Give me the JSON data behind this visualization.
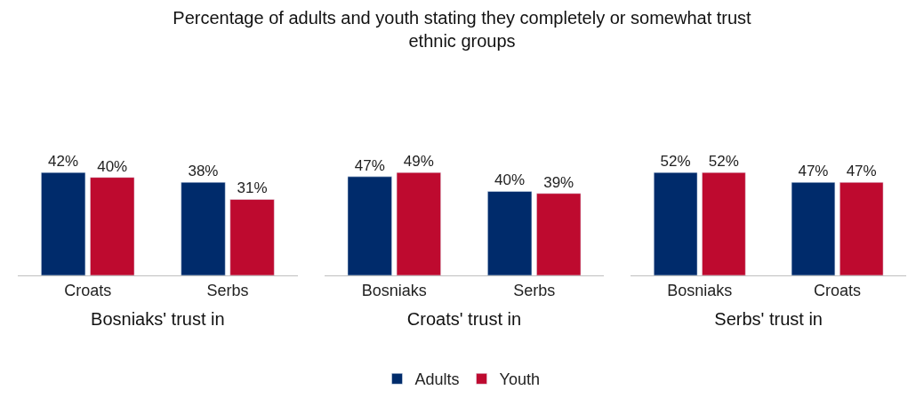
{
  "chart_data": [
    {
      "type": "bar",
      "title": "Percentage of adults and youth stating they completely or somewhat trust ethnic groups",
      "xlabel": "Bosniaks' trust in",
      "categories": [
        "Croats",
        "Serbs"
      ],
      "tick_labels": "x",
      "legend": "bottom",
      "series": [
        {
          "name": "Adults",
          "color": "#002b6b",
          "values": [
            42,
            38
          ],
          "value_labels": [
            "42%",
            "38%"
          ]
        },
        {
          "name": "Youth",
          "color": "#be0a2f",
          "values": [
            40,
            31
          ],
          "value_labels": [
            "40%",
            "31%"
          ]
        }
      ]
    },
    {
      "type": "bar",
      "xlabel": "Croats' trust in",
      "categories": [
        "Bosniaks",
        "Serbs"
      ],
      "tick_labels": "x",
      "series": [
        {
          "color": "#002b6b",
          "values": [
            47,
            40
          ],
          "value_labels": [
            "47%",
            "40%"
          ]
        },
        {
          "color": "#be0a2f",
          "values": [
            49,
            39
          ],
          "value_labels": [
            "49%",
            "39%"
          ]
        }
      ]
    },
    {
      "type": "bar",
      "xlabel": "Serbs' trust in",
      "categories": [
        "Bosniaks",
        "Croats"
      ],
      "tick_labels": "x",
      "series": [
        {
          "color": "#002b6b",
          "values": [
            52,
            47
          ],
          "value_labels": [
            "52%",
            "47%"
          ]
        },
        {
          "color": "#be0a2f",
          "values": [
            52,
            47
          ],
          "value_labels": [
            "52%",
            "47%"
          ]
        }
      ]
    }
  ]
}
